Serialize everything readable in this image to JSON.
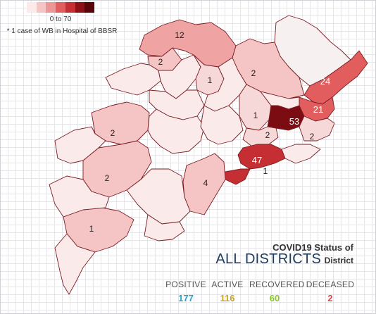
{
  "legend": {
    "range": "0 to 70",
    "note": "* 1 case of WB in Hospital of BBSR",
    "colors": [
      "#fbeaea",
      "#f5c4c4",
      "#ed9696",
      "#e25d5d",
      "#c52f33",
      "#8e0f15",
      "#5a0509"
    ]
  },
  "title": {
    "line1": "COVID19 Status of",
    "line2_big": "ALL DISTRICTS",
    "line2_small": "District"
  },
  "stats": [
    {
      "label": "POSITIVE",
      "value": "177",
      "color": "#27a7c2"
    },
    {
      "label": "ACTIVE",
      "value": "116",
      "color": "#c9a227"
    },
    {
      "label": "RECOVERED",
      "value": "60",
      "color": "#8ac629"
    },
    {
      "label": "DECEASED",
      "value": "2",
      "color": "#e2424b"
    }
  ],
  "district_labels": [
    "12",
    "2",
    "1",
    "2",
    "24",
    "21",
    "1",
    "53",
    "2",
    "2",
    "2",
    "47",
    "1",
    "2",
    "4",
    "1"
  ]
}
